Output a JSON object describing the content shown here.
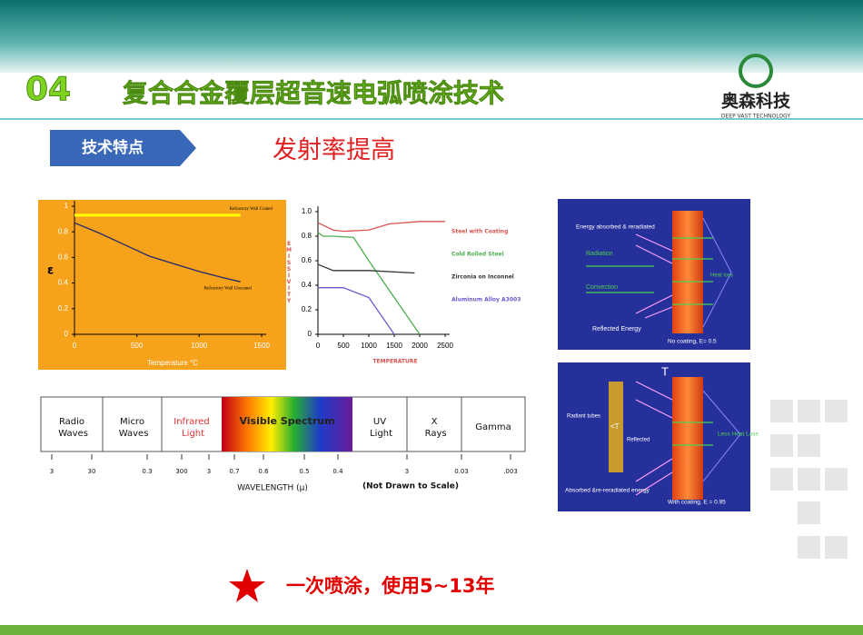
{
  "header": {
    "number": "04",
    "title": "复合合金覆层超音速电弧喷涂技术",
    "logo_name": "奥森科技",
    "logo_sub": "DEEP VAST TECHNOLOGY"
  },
  "tag": "技术特点",
  "subtitle": "发射率提高",
  "chart_data": [
    {
      "type": "line",
      "x_label": "Temperature °C",
      "y_label": "ε",
      "background": "#f7a21b",
      "xlim": [
        0,
        1500
      ],
      "ylim": [
        0,
        1
      ],
      "xticks": [
        0,
        500,
        1000,
        1500
      ],
      "yticks": [
        0,
        0.2,
        0.4,
        0.6,
        0.8,
        1
      ],
      "series": [
        {
          "name": "Refractory Wall Coated",
          "color": "#ffff00",
          "x": [
            0,
            1330
          ],
          "values": [
            0.93,
            0.93
          ]
        },
        {
          "name": "Refractory Wall Uncoated",
          "color": "#1f2a6e",
          "x": [
            0,
            200,
            400,
            600,
            800,
            1000,
            1200,
            1330
          ],
          "values": [
            0.87,
            0.79,
            0.7,
            0.61,
            0.55,
            0.49,
            0.44,
            0.41
          ]
        }
      ]
    },
    {
      "type": "line",
      "x_label": "TEMPERATURE",
      "y_label": "EMISSIVITY",
      "legend": "right",
      "xlim": [
        0,
        2500
      ],
      "ylim": [
        0,
        1
      ],
      "xticks": [
        0,
        500,
        1000,
        1500,
        2000,
        2500
      ],
      "yticks": [
        0,
        0.2,
        0.4,
        0.6,
        0.8,
        {
          "value": 1,
          "label": "1.0"
        }
      ],
      "series": [
        {
          "name": "Steel with Coating",
          "color": "#d9534f",
          "x": [
            0,
            300,
            500,
            1000,
            1400,
            2000,
            2500
          ],
          "values": [
            0.91,
            0.85,
            0.84,
            0.85,
            0.9,
            0.92,
            0.92
          ]
        },
        {
          "name": "Cold Rolled Steel",
          "color": "#4caf50",
          "x": [
            0,
            100,
            300,
            700,
            1000,
            1500,
            2000
          ],
          "values": [
            0.83,
            0.8,
            0.8,
            0.79,
            0.6,
            0.3,
            0
          ]
        },
        {
          "name": "Zirconia on Inconnel",
          "color": "#333333",
          "x": [
            0,
            300,
            1000,
            1900
          ],
          "values": [
            0.57,
            0.52,
            0.52,
            0.5
          ]
        },
        {
          "name": "Aluminum Alloy A3003",
          "color": "#6a5acd",
          "x": [
            0,
            500,
            1000,
            1500
          ],
          "values": [
            0.38,
            0.38,
            0.3,
            0
          ]
        }
      ]
    }
  ],
  "spectrum": {
    "bands": [
      "Radio Waves",
      "Micro Waves",
      "Infrared Light",
      "Visible Spectrum",
      "UV Light",
      "X Rays",
      "Gamma"
    ],
    "wavelengths": [
      "3",
      "30",
      "0.3",
      "300",
      "3",
      "0.7",
      "0.6",
      "0.5",
      "0.4",
      "3",
      "0.03",
      ".003"
    ],
    "axis_label": "WAVELENGTH (µ)",
    "note": "(Not Drawn to Scale)"
  },
  "diagram_uncoated": {
    "absorbed": "Energy absorbed & reradiated",
    "radiation": "Radiation",
    "convection": "Convection",
    "reflected": "Reflected Energy",
    "heat_loss": "Heat loss",
    "caption": "No coating, E= 0.5"
  },
  "diagram_coated": {
    "t": "T",
    "tubes": "Radiant tubes",
    "lt": "<T",
    "reflected": "Reflected",
    "less_loss": "Less Heat Loss",
    "absorbed": "Absorbed &re-reradiated energy",
    "caption": "With coating, E = 0.95"
  },
  "footer": "一次喷涂，使用5~13年"
}
